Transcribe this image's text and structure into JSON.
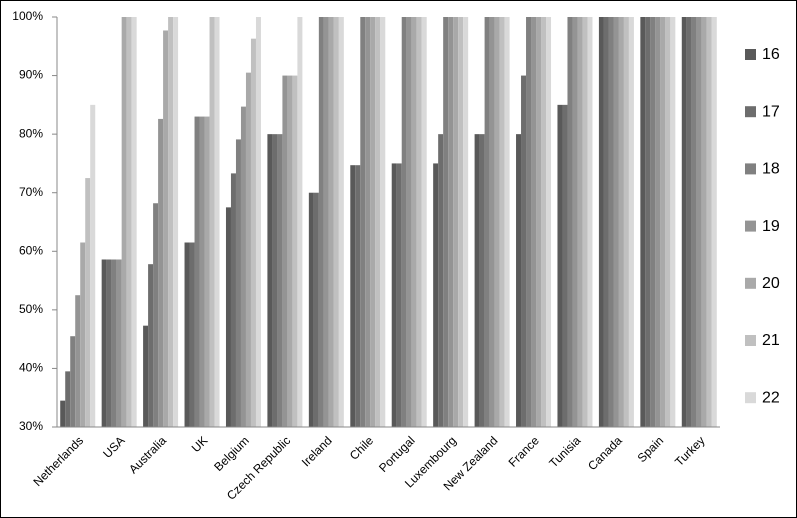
{
  "chart_data": {
    "type": "bar",
    "categories": [
      "Netherlands",
      "USA",
      "Australia",
      "UK",
      "Belgium",
      "Czech Republic",
      "Ireland",
      "Chile",
      "Portugal",
      "Luxembourg",
      "New Zealand",
      "France",
      "Tunisia",
      "Canada",
      "Spain",
      "Turkey"
    ],
    "series": [
      {
        "name": "16",
        "color": "#595959",
        "values": [
          34.5,
          58.6,
          47.3,
          61.5,
          67.5,
          80,
          70,
          74.7,
          75,
          75,
          80,
          80,
          85,
          100,
          100,
          100
        ]
      },
      {
        "name": "17",
        "color": "#6d6d6d",
        "values": [
          39.5,
          58.6,
          57.8,
          61.5,
          73.3,
          80,
          70,
          74.7,
          75,
          80,
          80,
          90,
          85,
          100,
          100,
          100
        ]
      },
      {
        "name": "18",
        "color": "#808080",
        "values": [
          45.5,
          58.6,
          68.2,
          83,
          79.1,
          80,
          100,
          100,
          100,
          100,
          100,
          100,
          100,
          100,
          100,
          100
        ]
      },
      {
        "name": "19",
        "color": "#949494",
        "values": [
          52.5,
          58.6,
          82.6,
          83,
          84.7,
          90,
          100,
          100,
          100,
          100,
          100,
          100,
          100,
          100,
          100,
          100
        ]
      },
      {
        "name": "20",
        "color": "#a9a9a9",
        "values": [
          61.5,
          100,
          97.7,
          83,
          90.5,
          90,
          100,
          100,
          100,
          100,
          100,
          100,
          100,
          100,
          100,
          100
        ]
      },
      {
        "name": "21",
        "color": "#c0c0c0",
        "values": [
          72.5,
          100,
          100,
          100,
          96.3,
          90,
          100,
          100,
          100,
          100,
          100,
          100,
          100,
          100,
          100,
          100
        ]
      },
      {
        "name": "22",
        "color": "#d9d9d9",
        "values": [
          85,
          100,
          100,
          100,
          100,
          100,
          100,
          100,
          100,
          100,
          100,
          100,
          100,
          100,
          100,
          100
        ]
      }
    ],
    "ylim": [
      30,
      100
    ],
    "yticks": [
      {
        "value": 30,
        "label": "30%"
      },
      {
        "value": 40,
        "label": "40%"
      },
      {
        "value": 50,
        "label": "50%"
      },
      {
        "value": 60,
        "label": "60%"
      },
      {
        "value": 70,
        "label": "70%"
      },
      {
        "value": 80,
        "label": "80%"
      },
      {
        "value": 90,
        "label": "90%"
      },
      {
        "value": 100,
        "label": "100%"
      }
    ],
    "grid": false,
    "legend": "right"
  }
}
